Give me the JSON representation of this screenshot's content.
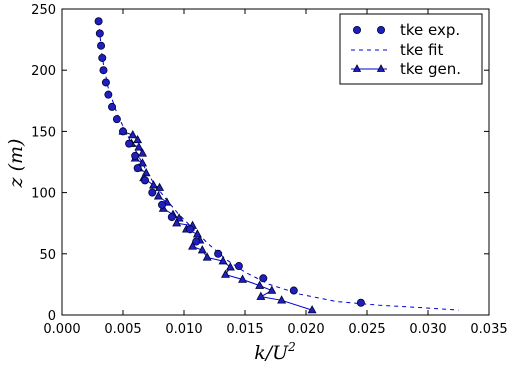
{
  "chart_data": {
    "type": "scatter",
    "title": "",
    "xlabel": "k/U²",
    "xlabel_parts": {
      "base": "k/U",
      "sup": "2"
    },
    "ylabel": "z (m)",
    "xlim": [
      0.0,
      0.035
    ],
    "ylim": [
      0,
      250
    ],
    "xticks": [
      0.0,
      0.005,
      0.01,
      0.015,
      0.02,
      0.025,
      0.03,
      0.035
    ],
    "xtick_labels": [
      "0.000",
      "0.005",
      "0.010",
      "0.015",
      "0.020",
      "0.025",
      "0.030",
      "0.035"
    ],
    "yticks": [
      0,
      50,
      100,
      150,
      200,
      250
    ],
    "ytick_labels": [
      "0",
      "50",
      "100",
      "150",
      "200",
      "250"
    ],
    "grid": false,
    "legend_position": "top-right",
    "colors": {
      "series": "#0000cc",
      "marker_fill": "#1f1fbf",
      "marker_edge": "#000033"
    },
    "series": [
      {
        "name": "tke exp.",
        "style": "markers-circle",
        "points": [
          [
            0.003,
            240
          ],
          [
            0.0031,
            230
          ],
          [
            0.0032,
            220
          ],
          [
            0.0033,
            210
          ],
          [
            0.0034,
            200
          ],
          [
            0.0036,
            190
          ],
          [
            0.0038,
            180
          ],
          [
            0.0041,
            170
          ],
          [
            0.0045,
            160
          ],
          [
            0.005,
            150
          ],
          [
            0.0055,
            140
          ],
          [
            0.006,
            130
          ],
          [
            0.0062,
            120
          ],
          [
            0.0068,
            110
          ],
          [
            0.0074,
            100
          ],
          [
            0.0082,
            90
          ],
          [
            0.009,
            80
          ],
          [
            0.0105,
            70
          ],
          [
            0.011,
            60
          ],
          [
            0.0128,
            50
          ],
          [
            0.0145,
            40
          ],
          [
            0.0165,
            30
          ],
          [
            0.019,
            20
          ],
          [
            0.0245,
            10
          ]
        ]
      },
      {
        "name": "tke fit",
        "style": "dashed-line",
        "points": [
          [
            0.003,
            240
          ],
          [
            0.0033,
            210
          ],
          [
            0.0038,
            185
          ],
          [
            0.0045,
            165
          ],
          [
            0.0052,
            150
          ],
          [
            0.006,
            135
          ],
          [
            0.0068,
            120
          ],
          [
            0.0075,
            108
          ],
          [
            0.0085,
            95
          ],
          [
            0.0095,
            83
          ],
          [
            0.0108,
            70
          ],
          [
            0.012,
            58
          ],
          [
            0.0135,
            45
          ],
          [
            0.015,
            35
          ],
          [
            0.017,
            25
          ],
          [
            0.0195,
            17
          ],
          [
            0.0225,
            11
          ],
          [
            0.026,
            8
          ],
          [
            0.0295,
            6
          ],
          [
            0.0325,
            4
          ]
        ]
      },
      {
        "name": "tke gen.",
        "style": "line-triangle",
        "points": [
          [
            0.005,
            150
          ],
          [
            0.0058,
            147
          ],
          [
            0.0062,
            143
          ],
          [
            0.0057,
            140
          ],
          [
            0.0063,
            137
          ],
          [
            0.0066,
            132
          ],
          [
            0.006,
            128
          ],
          [
            0.0066,
            124
          ],
          [
            0.0063,
            120
          ],
          [
            0.0069,
            116
          ],
          [
            0.0067,
            112
          ],
          [
            0.0075,
            106
          ],
          [
            0.008,
            104
          ],
          [
            0.0079,
            97
          ],
          [
            0.0086,
            92
          ],
          [
            0.0083,
            87
          ],
          [
            0.0091,
            82
          ],
          [
            0.0096,
            79
          ],
          [
            0.0094,
            75
          ],
          [
            0.0107,
            73
          ],
          [
            0.0102,
            70
          ],
          [
            0.0111,
            66
          ],
          [
            0.0113,
            61
          ],
          [
            0.0107,
            56
          ],
          [
            0.0115,
            53
          ],
          [
            0.0119,
            47
          ],
          [
            0.0132,
            44
          ],
          [
            0.0138,
            39
          ],
          [
            0.0134,
            33
          ],
          [
            0.0148,
            29
          ],
          [
            0.0162,
            24
          ],
          [
            0.0172,
            20
          ],
          [
            0.0163,
            15
          ],
          [
            0.018,
            12
          ],
          [
            0.0205,
            4
          ]
        ]
      }
    ]
  }
}
